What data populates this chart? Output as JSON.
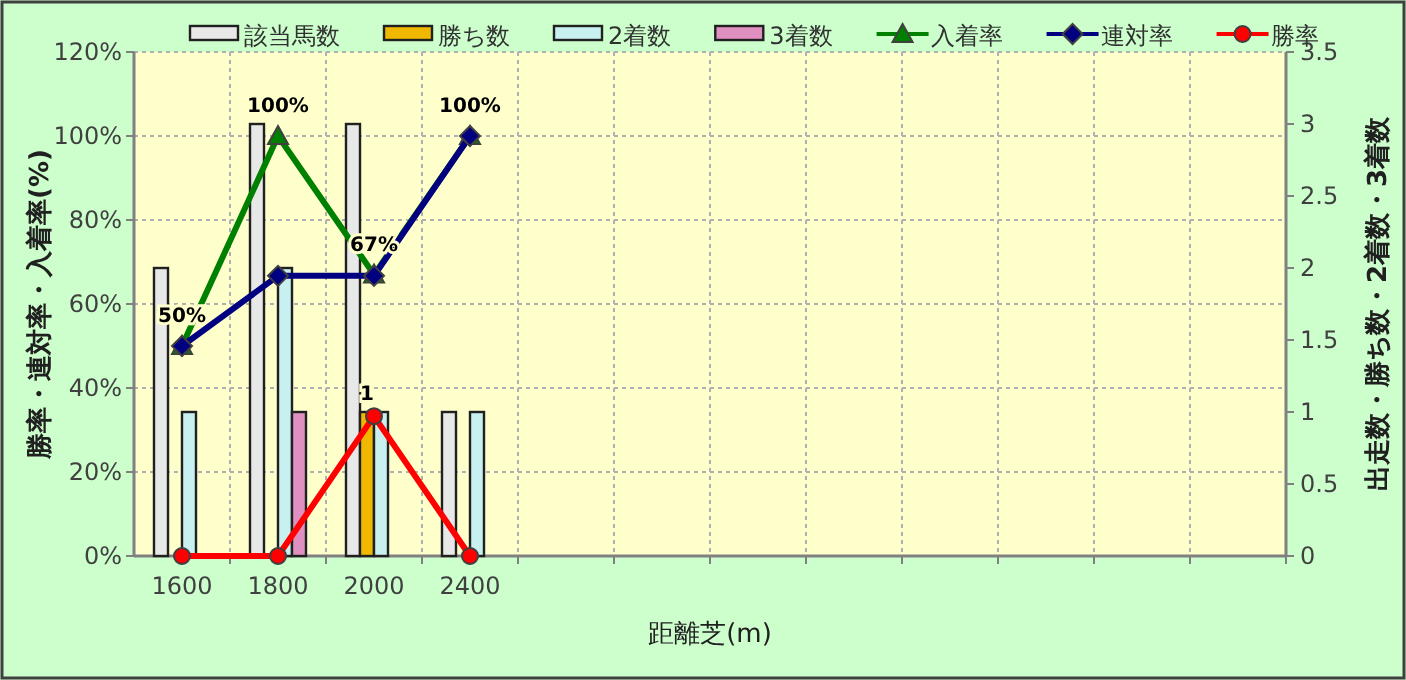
{
  "chart_data": {
    "type": "bar",
    "categories": [
      "1600",
      "1800",
      "2000",
      "2400",
      null,
      null,
      null,
      null,
      null,
      null,
      null,
      null
    ],
    "xlabel": "距離芝(m)",
    "ylabel": "勝率・連対率・入着率(%)",
    "y2label": "出走数・勝ち数・2着数・3着数",
    "ylim": [
      0,
      120
    ],
    "yticks": [
      {
        "value": 0,
        "label": "0%"
      },
      {
        "value": 20,
        "label": "20%"
      },
      {
        "value": 40,
        "label": "40%"
      },
      {
        "value": 60,
        "label": "60%"
      },
      {
        "value": 80,
        "label": "80%"
      },
      {
        "value": 100,
        "label": "100%"
      },
      {
        "value": 120,
        "label": "120%"
      }
    ],
    "y2lim": [
      0,
      3.5
    ],
    "y2ticks": [
      0,
      0.5,
      1,
      1.5,
      2,
      2.5,
      3,
      3.5
    ],
    "grid": true,
    "legend": "top",
    "series": [
      {
        "name": "該当馬数",
        "axis": "y2",
        "color": "#e8e8e8",
        "values": [
          2,
          3,
          3,
          1,
          null,
          null,
          null,
          null,
          null,
          null,
          null,
          null
        ]
      },
      {
        "name": "勝ち数",
        "axis": "y2",
        "color": "#f0b800",
        "values": [
          0,
          0,
          1,
          0,
          null,
          null,
          null,
          null,
          null,
          null,
          null,
          null
        ],
        "value_labels": [
          null,
          null,
          "1",
          null,
          null,
          null,
          null,
          null,
          null,
          null,
          null,
          null
        ]
      },
      {
        "name": "2着数",
        "axis": "y2",
        "color": "#c8f0f0",
        "values": [
          1,
          2,
          1,
          1,
          null,
          null,
          null,
          null,
          null,
          null,
          null,
          null
        ]
      },
      {
        "name": "3着数",
        "axis": "y2",
        "color": "#e090c0",
        "values": [
          0,
          1,
          0,
          0,
          null,
          null,
          null,
          null,
          null,
          null,
          null,
          null
        ]
      },
      {
        "name": "入着率",
        "type": "line",
        "axis": "y",
        "color": "#008000",
        "marker": "triangle",
        "values": [
          50,
          100,
          67,
          100,
          null,
          null,
          null,
          null,
          null,
          null,
          null,
          null
        ],
        "value_labels": [
          "50%",
          "100%",
          "67%",
          "100%",
          null,
          null,
          null,
          null,
          null,
          null,
          null,
          null
        ]
      },
      {
        "name": "連対率",
        "type": "line",
        "axis": "y",
        "color": "#000080",
        "marker": "diamond",
        "values": [
          50,
          66.7,
          66.7,
          100,
          null,
          null,
          null,
          null,
          null,
          null,
          null,
          null
        ]
      },
      {
        "name": "勝率",
        "type": "line",
        "axis": "y",
        "color": "#ff0000",
        "marker": "circle",
        "values": [
          0,
          0,
          33.3,
          0,
          null,
          null,
          null,
          null,
          null,
          null,
          null,
          null
        ]
      }
    ]
  }
}
